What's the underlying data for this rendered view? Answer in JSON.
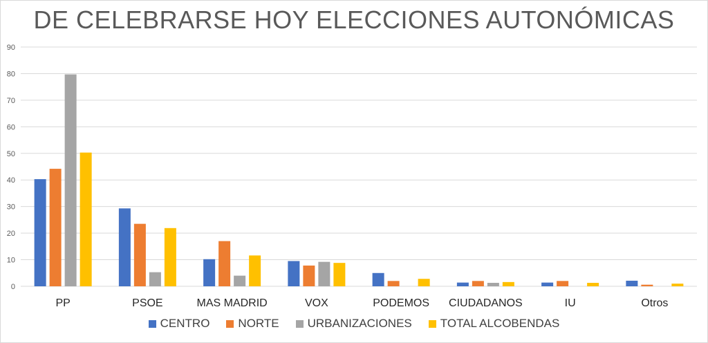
{
  "chart_data": {
    "type": "bar",
    "title": "DE CELEBRARSE HOY ELECCIONES AUTONÓMICAS",
    "xlabel": "",
    "ylabel": "",
    "ylim": [
      0,
      90
    ],
    "yticks": [
      0,
      10,
      20,
      30,
      40,
      50,
      60,
      70,
      80,
      90
    ],
    "grid": true,
    "legend_position": "bottom",
    "categories": [
      "PP",
      "PSOE",
      "MAS MADRID",
      "VOX",
      "PODEMOS",
      "CIUDADANOS",
      "IU",
      "Otros"
    ],
    "series": [
      {
        "name": "CENTRO",
        "color": "#4472C4",
        "values": [
          40.3,
          29.3,
          10.2,
          9.5,
          5.0,
          1.4,
          1.4,
          2.1
        ]
      },
      {
        "name": "NORTE",
        "color": "#ED7D31",
        "values": [
          44.2,
          23.5,
          17.0,
          7.8,
          2.0,
          2.0,
          2.0,
          0.6
        ]
      },
      {
        "name": "URBANIZACIONES",
        "color": "#A5A5A5",
        "values": [
          79.7,
          5.3,
          4.0,
          9.2,
          0,
          1.3,
          0,
          0
        ]
      },
      {
        "name": "TOTAL ALCOBENDAS",
        "color": "#FFC000",
        "values": [
          50.3,
          21.9,
          11.6,
          8.8,
          2.8,
          1.6,
          1.3,
          1.0
        ]
      }
    ]
  }
}
